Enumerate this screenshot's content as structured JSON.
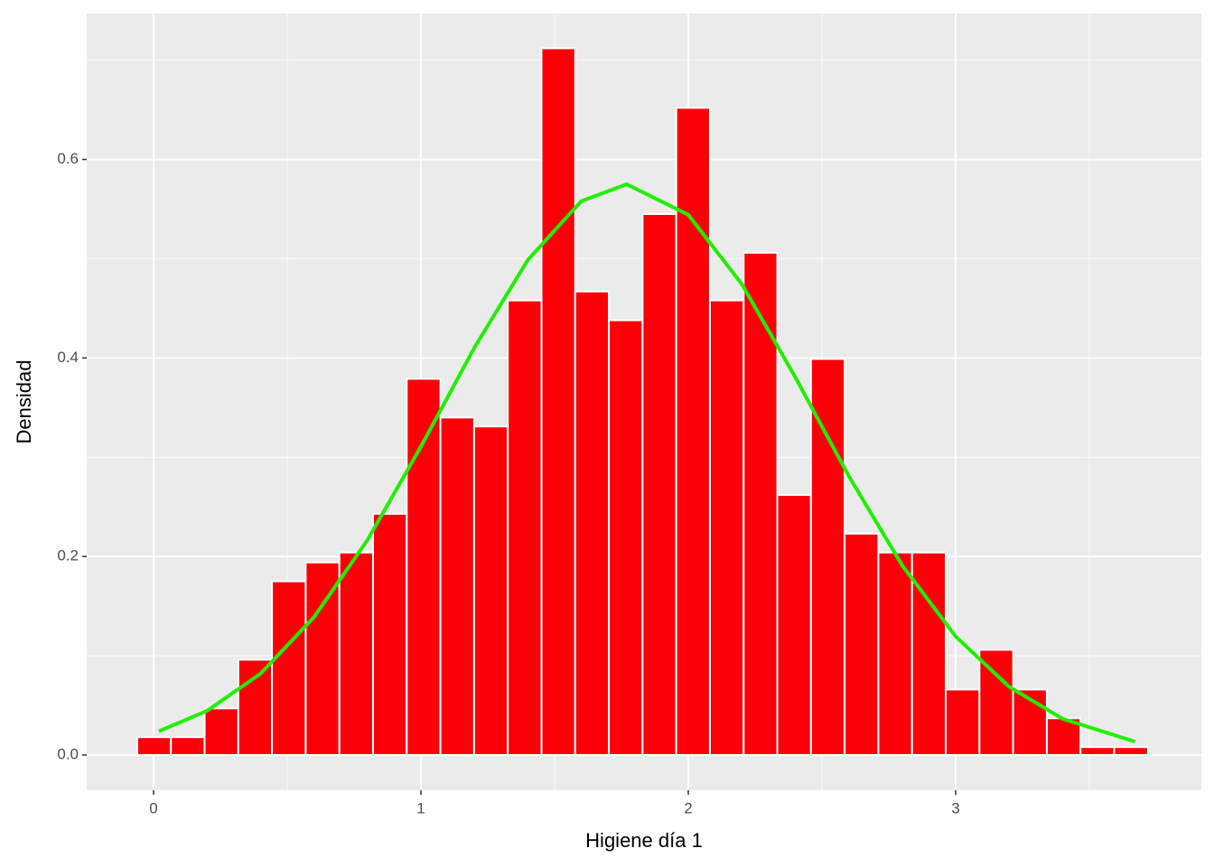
{
  "chart_data": {
    "type": "histogram",
    "x_label": "Higiene día 1",
    "y_label": "Densidad",
    "bins": [
      -0.061,
      0.065,
      0.191,
      0.317,
      0.443,
      0.569,
      0.695,
      0.821,
      0.947,
      1.073,
      1.199,
      1.325,
      1.451,
      1.577,
      1.703,
      1.829,
      1.955,
      2.081,
      2.207,
      2.333,
      2.459,
      2.585,
      2.711,
      2.837,
      2.963,
      3.089,
      3.215,
      3.341,
      3.467,
      3.593,
      3.719
    ],
    "values": [
      0.018,
      0.018,
      0.047,
      0.096,
      0.175,
      0.194,
      0.204,
      0.243,
      0.379,
      0.34,
      0.331,
      0.458,
      0.712,
      0.467,
      0.438,
      0.545,
      0.652,
      0.458,
      0.506,
      0.262,
      0.399,
      0.223,
      0.204,
      0.204,
      0.066,
      0.106,
      0.066,
      0.037,
      0.008,
      0.008
    ],
    "color": "#fb0007",
    "edge_color": "#ffffff",
    "curve": {
      "x": [
        0.02,
        0.2,
        0.4,
        0.6,
        0.8,
        1.0,
        1.2,
        1.4,
        1.6,
        1.77,
        2.0,
        2.2,
        2.4,
        2.6,
        2.8,
        3.0,
        3.2,
        3.4,
        3.67
      ],
      "values": [
        0.0239,
        0.0445,
        0.0819,
        0.1388,
        0.2165,
        0.3107,
        0.4104,
        0.4988,
        0.558,
        0.575,
        0.5443,
        0.4745,
        0.3808,
        0.2812,
        0.1911,
        0.1195,
        0.0688,
        0.0365,
        0.0135
      ],
      "color": "#22ee00"
    },
    "xlim": [
      -0.25,
      3.919
    ],
    "ylim": [
      -0.0355,
      0.747
    ],
    "xticks": [
      0,
      1,
      2,
      3
    ],
    "yticks": [
      {
        "value": 0,
        "label": "0.0"
      },
      {
        "value": 0.2,
        "label": "0.2"
      },
      {
        "value": 0.4,
        "label": "0.4"
      },
      {
        "value": 0.6,
        "label": "0.6"
      }
    ],
    "x_minor_ticks": [
      0.5,
      1.5,
      2.5,
      3.5
    ],
    "y_minor_ticks": [
      0.1,
      0.3,
      0.5,
      0.7
    ],
    "grid": true
  }
}
